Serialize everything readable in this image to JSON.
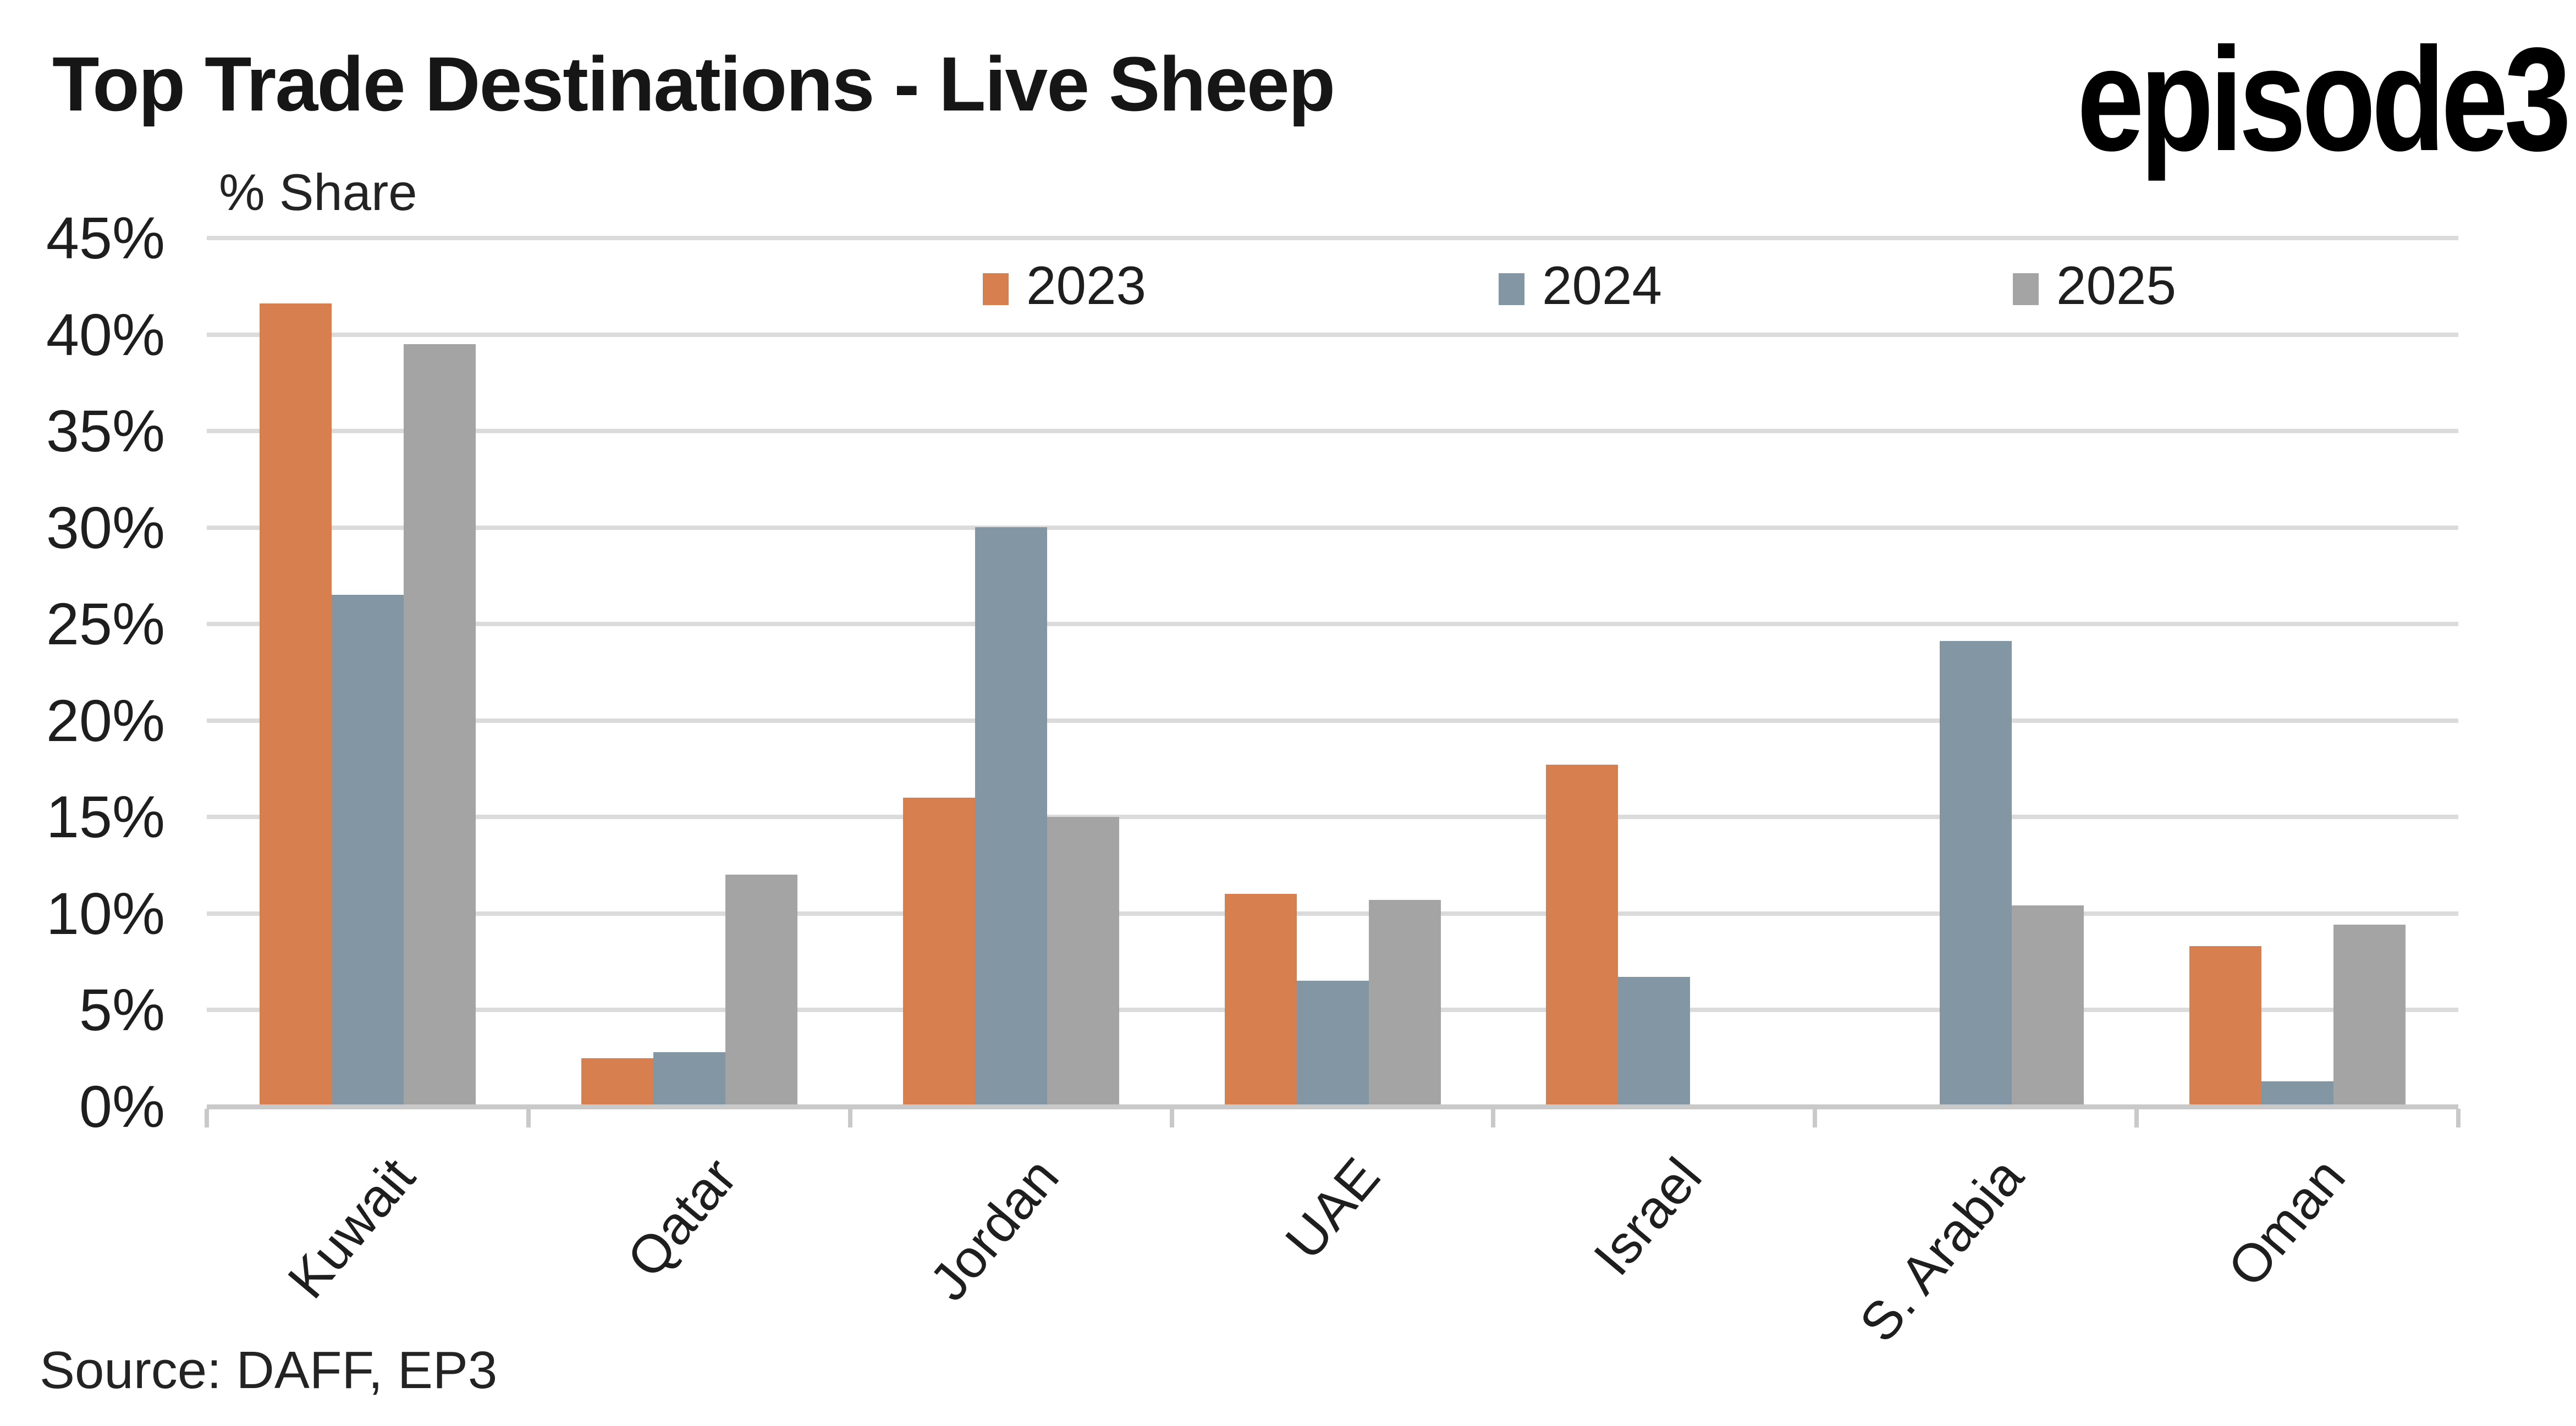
{
  "header": {
    "title": "Top Trade Destinations - Live Sheep",
    "logo": "episode3"
  },
  "chart_data": {
    "type": "bar",
    "title": "Top Trade Destinations - Live Sheep",
    "ylabel": "% Share",
    "xlabel": "",
    "ylim": [
      0,
      45
    ],
    "ytick_step": 5,
    "ytick_suffix": "%",
    "grid": true,
    "legend_position": "top",
    "categories": [
      "Kuwait",
      "Qatar",
      "Jordan",
      "UAE",
      "Israel",
      "S. Arabia",
      "Oman"
    ],
    "series": [
      {
        "name": "2023",
        "color": "#D87F4F",
        "values": [
          41.5,
          2.4,
          15.9,
          10.9,
          17.6,
          null,
          8.2
        ]
      },
      {
        "name": "2024",
        "color": "#8296A4",
        "values": [
          26.4,
          2.7,
          29.9,
          6.4,
          6.6,
          24.0,
          1.2
        ]
      },
      {
        "name": "2025",
        "color": "#A4A4A4",
        "values": [
          39.4,
          11.9,
          14.9,
          10.6,
          null,
          10.3,
          9.3
        ]
      }
    ]
  },
  "footer": {
    "source": "Source: DAFF, EP3"
  }
}
